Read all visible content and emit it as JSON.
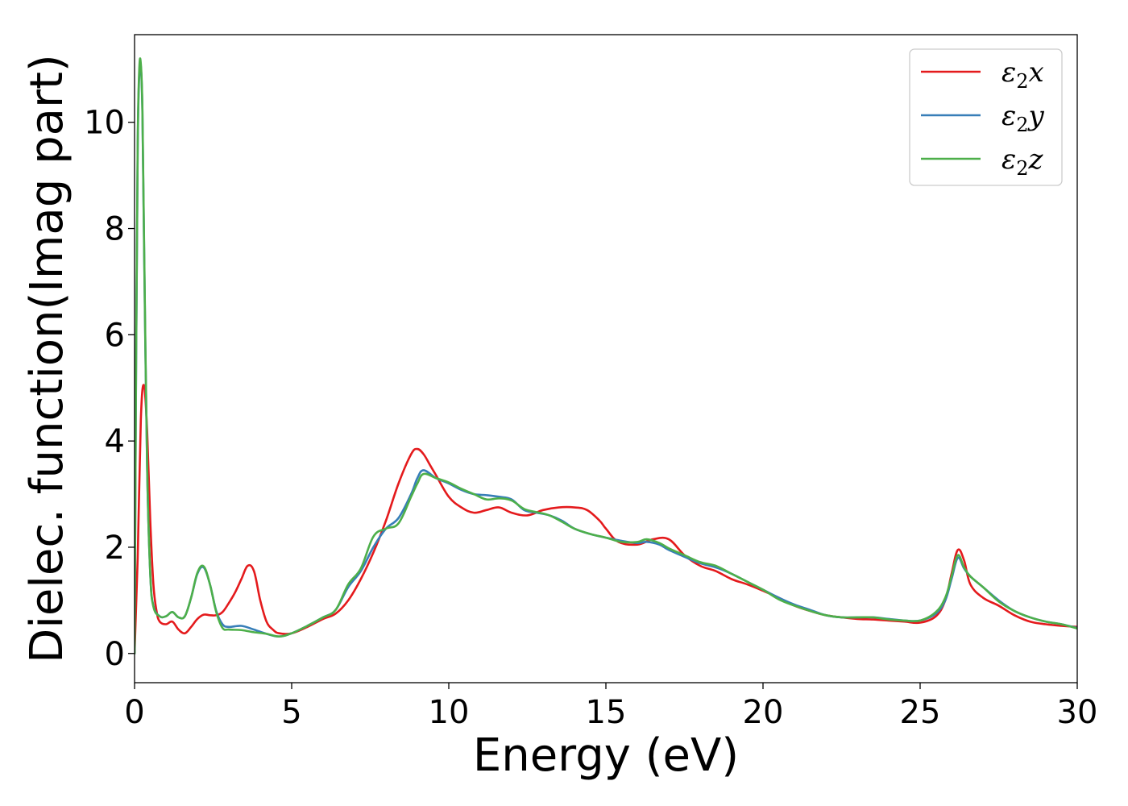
{
  "chart_data": {
    "type": "line",
    "title": "",
    "xlabel": "Energy (eV)",
    "ylabel": "Dielec. function(Imag part)",
    "xlim": [
      0,
      30
    ],
    "ylim": [
      -0.55,
      11.65
    ],
    "xticks": [
      0,
      5,
      10,
      15,
      20,
      25,
      30
    ],
    "yticks": [
      0,
      2,
      4,
      6,
      8,
      10
    ],
    "grid": false,
    "legend_position": "top-right",
    "series": [
      {
        "name": "ε2x",
        "legend_label": {
          "base": "ε",
          "sub": "2",
          "suffix": "x"
        },
        "color": "#e41a1c",
        "x": [
          0,
          0.1,
          0.2,
          0.3,
          0.4,
          0.5,
          0.6,
          0.7,
          0.8,
          1.0,
          1.2,
          1.4,
          1.6,
          1.8,
          2.0,
          2.2,
          2.4,
          2.6,
          2.8,
          3.0,
          3.2,
          3.4,
          3.6,
          3.8,
          4.0,
          4.2,
          4.4,
          4.6,
          5.0,
          5.5,
          6.0,
          6.4,
          6.8,
          7.2,
          7.6,
          8.0,
          8.4,
          8.8,
          9.0,
          9.2,
          9.4,
          9.6,
          10.0,
          10.4,
          10.8,
          11.2,
          11.6,
          12.0,
          12.5,
          13.0,
          13.5,
          14.0,
          14.4,
          14.8,
          15.0,
          15.4,
          16.0,
          16.5,
          17.0,
          17.5,
          18.0,
          18.5,
          19.0,
          19.5,
          20.0,
          20.5,
          21.0,
          21.5,
          22.0,
          22.5,
          23.0,
          23.5,
          24.0,
          24.5,
          25.0,
          25.5,
          25.8,
          26.0,
          26.2,
          26.4,
          26.6,
          27.0,
          27.5,
          28.0,
          28.5,
          29.0,
          29.5,
          30.0
        ],
        "y": [
          0,
          1.8,
          4.4,
          5.05,
          4.2,
          2.5,
          1.3,
          0.8,
          0.6,
          0.55,
          0.6,
          0.45,
          0.38,
          0.5,
          0.65,
          0.73,
          0.72,
          0.72,
          0.78,
          0.95,
          1.15,
          1.4,
          1.65,
          1.55,
          1.0,
          0.6,
          0.45,
          0.38,
          0.38,
          0.5,
          0.65,
          0.75,
          1.0,
          1.4,
          1.9,
          2.5,
          3.2,
          3.75,
          3.85,
          3.75,
          3.55,
          3.35,
          2.95,
          2.75,
          2.65,
          2.7,
          2.75,
          2.65,
          2.6,
          2.7,
          2.75,
          2.75,
          2.7,
          2.5,
          2.35,
          2.1,
          2.05,
          2.15,
          2.15,
          1.85,
          1.65,
          1.55,
          1.4,
          1.3,
          1.18,
          1.05,
          0.9,
          0.8,
          0.72,
          0.68,
          0.65,
          0.64,
          0.62,
          0.6,
          0.58,
          0.7,
          1.0,
          1.5,
          1.95,
          1.75,
          1.3,
          1.05,
          0.9,
          0.72,
          0.6,
          0.55,
          0.52,
          0.5
        ]
      },
      {
        "name": "ε2y",
        "legend_label": {
          "base": "ε",
          "sub": "2",
          "suffix": "y"
        },
        "color": "#377eb8",
        "x": [
          0,
          0.05,
          0.1,
          0.15,
          0.2,
          0.25,
          0.3,
          0.4,
          0.5,
          0.6,
          0.8,
          1.0,
          1.2,
          1.4,
          1.6,
          1.8,
          2.0,
          2.2,
          2.4,
          2.6,
          2.8,
          3.0,
          3.4,
          3.8,
          4.2,
          4.6,
          5.0,
          5.5,
          6.0,
          6.4,
          6.8,
          7.2,
          7.6,
          8.0,
          8.4,
          8.8,
          9.0,
          9.2,
          9.6,
          10.0,
          10.4,
          10.8,
          11.2,
          11.6,
          12.0,
          12.4,
          12.8,
          13.2,
          13.6,
          14.0,
          14.5,
          15.0,
          15.5,
          16.0,
          16.3,
          16.7,
          17.0,
          17.5,
          18.0,
          18.5,
          19.0,
          19.5,
          20.0,
          20.5,
          21.0,
          21.5,
          22.0,
          22.5,
          23.0,
          23.5,
          24.0,
          24.5,
          25.0,
          25.5,
          25.8,
          26.0,
          26.2,
          26.4,
          26.6,
          27.0,
          27.5,
          28.0,
          28.5,
          29.0,
          29.5,
          30.0
        ],
        "y": [
          0,
          5.5,
          9.5,
          10.9,
          11.05,
          10.2,
          7.8,
          3.5,
          1.5,
          0.9,
          0.7,
          0.7,
          0.78,
          0.68,
          0.7,
          1.05,
          1.5,
          1.62,
          1.3,
          0.8,
          0.55,
          0.5,
          0.52,
          0.45,
          0.37,
          0.32,
          0.38,
          0.52,
          0.68,
          0.82,
          1.25,
          1.55,
          2.0,
          2.35,
          2.55,
          3.0,
          3.3,
          3.45,
          3.3,
          3.2,
          3.08,
          3.0,
          2.98,
          2.95,
          2.9,
          2.7,
          2.65,
          2.6,
          2.5,
          2.35,
          2.25,
          2.18,
          2.12,
          2.08,
          2.1,
          2.05,
          1.95,
          1.82,
          1.7,
          1.62,
          1.5,
          1.35,
          1.2,
          1.05,
          0.92,
          0.82,
          0.72,
          0.68,
          0.68,
          0.68,
          0.65,
          0.62,
          0.62,
          0.75,
          1.0,
          1.4,
          1.8,
          1.6,
          1.45,
          1.25,
          1.0,
          0.8,
          0.68,
          0.6,
          0.55,
          0.48
        ]
      },
      {
        "name": "ε2z",
        "legend_label": {
          "base": "ε",
          "sub": "2",
          "suffix": "z"
        },
        "color": "#4daf4a",
        "x": [
          0,
          0.05,
          0.1,
          0.15,
          0.2,
          0.25,
          0.3,
          0.4,
          0.5,
          0.6,
          0.8,
          1.0,
          1.2,
          1.4,
          1.6,
          1.8,
          2.0,
          2.2,
          2.4,
          2.6,
          2.8,
          3.0,
          3.4,
          3.8,
          4.2,
          4.6,
          5.0,
          5.5,
          6.0,
          6.4,
          6.8,
          7.2,
          7.6,
          8.0,
          8.4,
          8.8,
          9.0,
          9.2,
          9.6,
          10.0,
          10.4,
          10.8,
          11.2,
          11.6,
          12.0,
          12.4,
          12.8,
          13.2,
          13.6,
          14.0,
          14.5,
          15.0,
          15.5,
          16.0,
          16.3,
          16.7,
          17.0,
          17.5,
          18.0,
          18.5,
          19.0,
          19.5,
          20.0,
          20.5,
          21.0,
          21.5,
          22.0,
          22.5,
          23.0,
          23.5,
          24.0,
          24.5,
          25.0,
          25.5,
          25.8,
          26.0,
          26.2,
          26.4,
          26.6,
          27.0,
          27.5,
          28.0,
          28.5,
          29.0,
          29.5,
          30.0
        ],
        "y": [
          0,
          5.6,
          9.6,
          11.0,
          11.1,
          10.25,
          7.9,
          3.55,
          1.5,
          0.88,
          0.7,
          0.7,
          0.78,
          0.68,
          0.7,
          1.05,
          1.52,
          1.64,
          1.3,
          0.78,
          0.48,
          0.45,
          0.44,
          0.4,
          0.37,
          0.32,
          0.38,
          0.52,
          0.68,
          0.82,
          1.3,
          1.6,
          2.2,
          2.35,
          2.45,
          2.95,
          3.2,
          3.38,
          3.3,
          3.22,
          3.1,
          3.0,
          2.9,
          2.92,
          2.88,
          2.72,
          2.66,
          2.6,
          2.48,
          2.35,
          2.25,
          2.18,
          2.1,
          2.1,
          2.15,
          2.08,
          1.98,
          1.85,
          1.72,
          1.65,
          1.5,
          1.35,
          1.2,
          1.02,
          0.9,
          0.8,
          0.72,
          0.68,
          0.68,
          0.68,
          0.64,
          0.62,
          0.62,
          0.78,
          1.05,
          1.45,
          1.85,
          1.62,
          1.45,
          1.25,
          0.98,
          0.8,
          0.68,
          0.6,
          0.55,
          0.47
        ]
      }
    ]
  }
}
